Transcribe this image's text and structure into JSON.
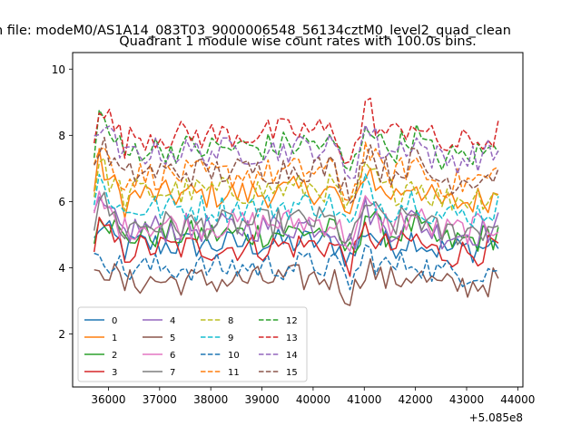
{
  "chart_data": {
    "type": "line",
    "suptitle": "n file: modeM0/AS1A14_083T03_9000006548_56134cztM0_level2_quad_clean",
    "title": "Quadrant 1 module wise count rates with 100.0s bins.",
    "xlabel": "",
    "ylabel": "",
    "x_offset_label": "+5.085e8",
    "xlim": [
      35300,
      44100
    ],
    "ylim": [
      0.4,
      10.5
    ],
    "x_ticks": [
      "36000",
      "37000",
      "38000",
      "39000",
      "40000",
      "41000",
      "42000",
      "43000",
      "44000"
    ],
    "y_ticks": [
      "2",
      "4",
      "6",
      "8",
      "10"
    ],
    "grid": false,
    "legend_position": "lower-left",
    "legend_columns": 4,
    "anchors": [
      {
        "x": 35720,
        "shape": 0.6
      },
      {
        "x": 35820,
        "shape": 1.0
      },
      {
        "x": 36000,
        "shape": 0.78
      },
      {
        "x": 36200,
        "shape": 0.58
      },
      {
        "x": 36330,
        "shape": 0.42
      },
      {
        "x": 36500,
        "shape": 0.55
      },
      {
        "x": 37000,
        "shape": 0.55
      },
      {
        "x": 38000,
        "shape": 0.55
      },
      {
        "x": 39000,
        "shape": 0.57
      },
      {
        "x": 40000,
        "shape": 0.62
      },
      {
        "x": 40400,
        "shape": 0.6
      },
      {
        "x": 40600,
        "shape": 0.35
      },
      {
        "x": 40750,
        "shape": 0.2
      },
      {
        "x": 40900,
        "shape": 0.55
      },
      {
        "x": 41050,
        "shape": 1.0
      },
      {
        "x": 41300,
        "shape": 0.6
      },
      {
        "x": 41600,
        "shape": 0.55
      },
      {
        "x": 42000,
        "shape": 0.75
      },
      {
        "x": 42200,
        "shape": 0.55
      },
      {
        "x": 42500,
        "shape": 0.42
      },
      {
        "x": 43000,
        "shape": 0.45
      },
      {
        "x": 43500,
        "shape": 0.52
      },
      {
        "x": 43620,
        "shape": 0.6
      },
      {
        "x": 43680,
        "shape": -0.35
      }
    ],
    "x_start": 35720,
    "x_end": 43680,
    "x_step": 100,
    "series": [
      {
        "name": "0",
        "color": "#1f77b4",
        "style": "solid",
        "base": 4.7,
        "amp": 1.3
      },
      {
        "name": "1",
        "color": "#ff7f0e",
        "style": "solid",
        "base": 6.2,
        "amp": 2.2
      },
      {
        "name": "2",
        "color": "#2ca02c",
        "style": "solid",
        "base": 5.0,
        "amp": 1.8
      },
      {
        "name": "3",
        "color": "#d62728",
        "style": "solid",
        "base": 4.6,
        "amp": 1.4
      },
      {
        "name": "4",
        "color": "#9467bd",
        "style": "solid",
        "base": 5.2,
        "amp": 1.5
      },
      {
        "name": "5",
        "color": "#8c564b",
        "style": "solid",
        "base": 3.6,
        "amp": 1.3
      },
      {
        "name": "6",
        "color": "#e377c2",
        "style": "solid",
        "base": 5.3,
        "amp": 1.6
      },
      {
        "name": "7",
        "color": "#7f7f7f",
        "style": "solid",
        "base": 5.3,
        "amp": 1.9
      },
      {
        "name": "8",
        "color": "#bcbd22",
        "style": "dashed",
        "base": 6.3,
        "amp": 1.9
      },
      {
        "name": "9",
        "color": "#17becf",
        "style": "dashed",
        "base": 5.8,
        "amp": 1.9
      },
      {
        "name": "10",
        "color": "#1f77b4",
        "style": "dashed",
        "base": 4.0,
        "amp": 1.3
      },
      {
        "name": "11",
        "color": "#ff7f0e",
        "style": "dashed",
        "base": 6.8,
        "amp": 2.1
      },
      {
        "name": "12",
        "color": "#2ca02c",
        "style": "dashed",
        "base": 7.6,
        "amp": 2.3
      },
      {
        "name": "13",
        "color": "#d62728",
        "style": "dashed",
        "base": 8.0,
        "amp": 2.3
      },
      {
        "name": "14",
        "color": "#9467bd",
        "style": "dashed",
        "base": 7.5,
        "amp": 2.0
      },
      {
        "name": "15",
        "color": "#8c564b",
        "style": "dashed",
        "base": 6.9,
        "amp": 2.0
      }
    ]
  }
}
